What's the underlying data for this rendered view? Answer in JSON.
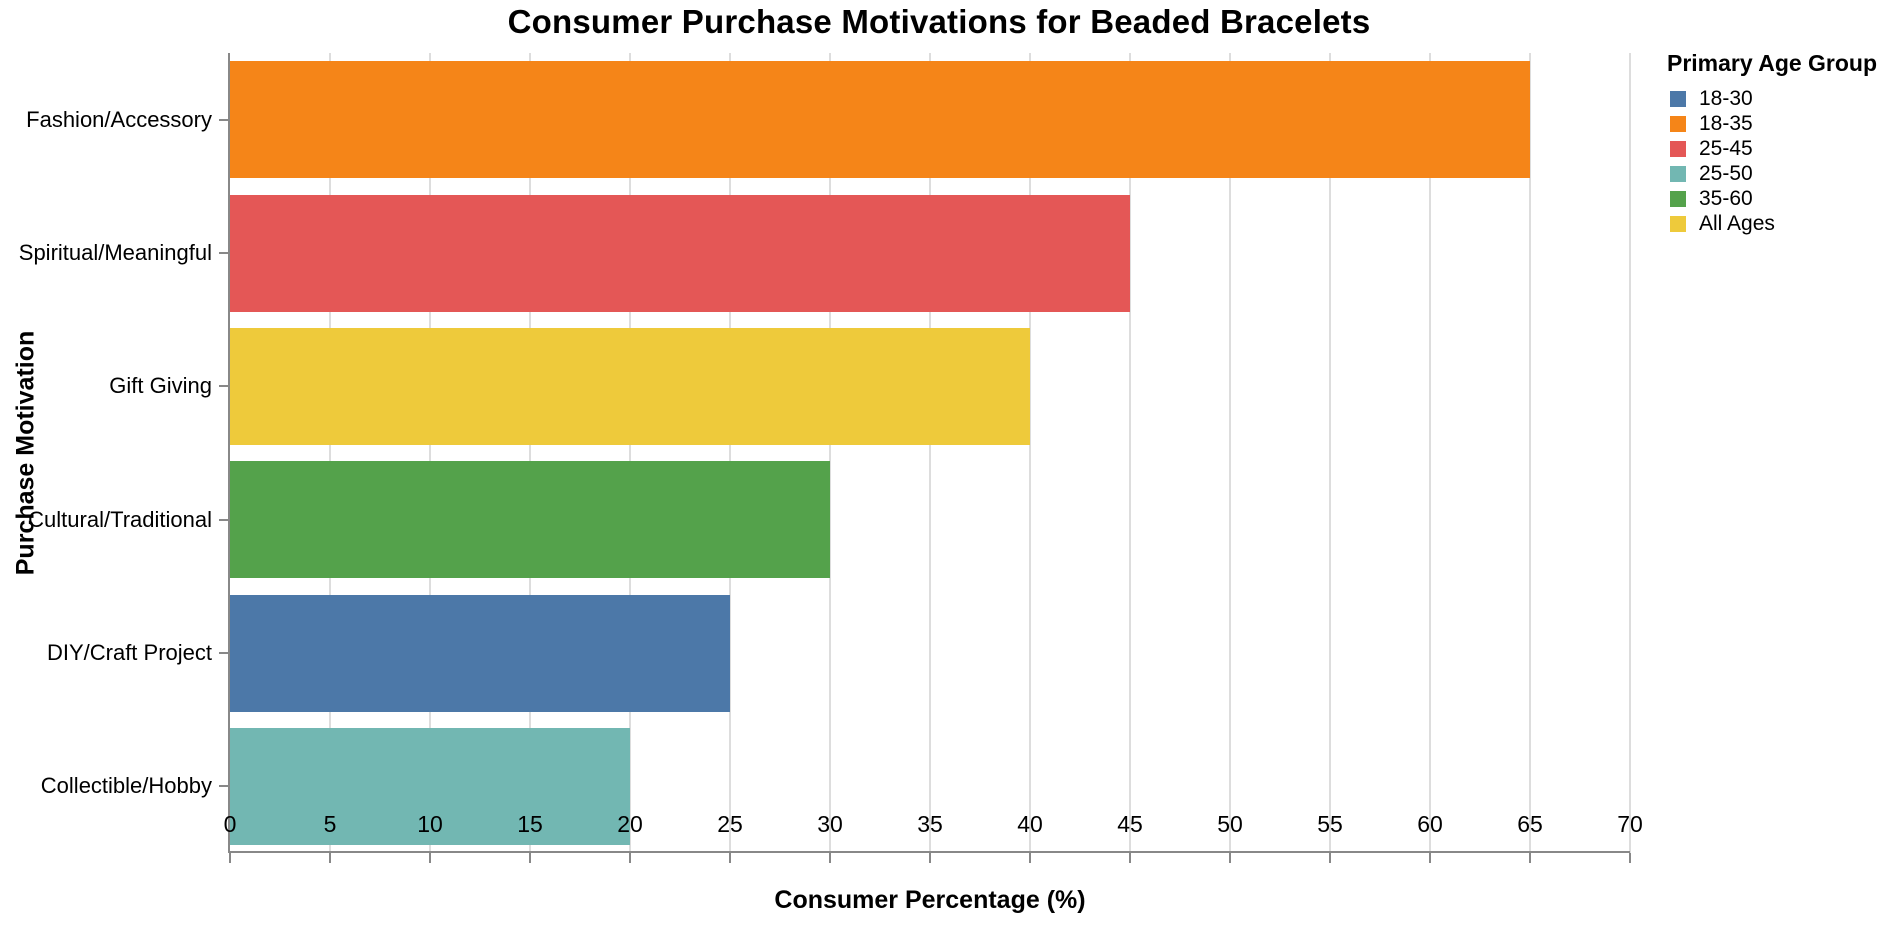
{
  "chart_data": {
    "type": "bar",
    "orientation": "horizontal",
    "title": "Consumer Purchase Motivations for Beaded Bracelets",
    "xlabel": "Consumer Percentage (%)",
    "ylabel": "Purchase Motivation",
    "categories": [
      "Fashion/Accessory",
      "Spiritual/Meaningful",
      "Gift Giving",
      "Cultural/Traditional",
      "DIY/Craft Project",
      "Collectible/Hobby"
    ],
    "values": [
      65,
      45,
      40,
      30,
      25,
      20
    ],
    "bars": [
      {
        "category": "Fashion/Accessory",
        "value": 65,
        "age_group": "18-35",
        "color": "#F58518"
      },
      {
        "category": "Spiritual/Meaningful",
        "value": 45,
        "age_group": "25-45",
        "color": "#E45756"
      },
      {
        "category": "Gift Giving",
        "value": 40,
        "age_group": "All Ages",
        "color": "#EECA3B"
      },
      {
        "category": "Cultural/Traditional",
        "value": 30,
        "age_group": "35-60",
        "color": "#54A24B"
      },
      {
        "category": "DIY/Craft Project",
        "value": 25,
        "age_group": "18-30",
        "color": "#4C78A8"
      },
      {
        "category": "Collectible/Hobby",
        "value": 20,
        "age_group": "25-50",
        "color": "#72B7B2"
      }
    ],
    "xlim": [
      0,
      70
    ],
    "xticks": [
      0,
      5,
      10,
      15,
      20,
      25,
      30,
      35,
      40,
      45,
      50,
      55,
      60,
      65,
      70
    ],
    "grid": true,
    "legend": {
      "title": "Primary Age Group",
      "position": "top-right",
      "entries": [
        {
          "label": "18-30",
          "color": "#4C78A8"
        },
        {
          "label": "18-35",
          "color": "#F58518"
        },
        {
          "label": "25-45",
          "color": "#E45756"
        },
        {
          "label": "25-50",
          "color": "#72B7B2"
        },
        {
          "label": "35-60",
          "color": "#54A24B"
        },
        {
          "label": "All Ages",
          "color": "#EECA3B"
        }
      ]
    },
    "style": {
      "grid_color": "#dddddd",
      "axis_color": "#888888",
      "text_color": "#000000",
      "background": "#ffffff"
    }
  }
}
